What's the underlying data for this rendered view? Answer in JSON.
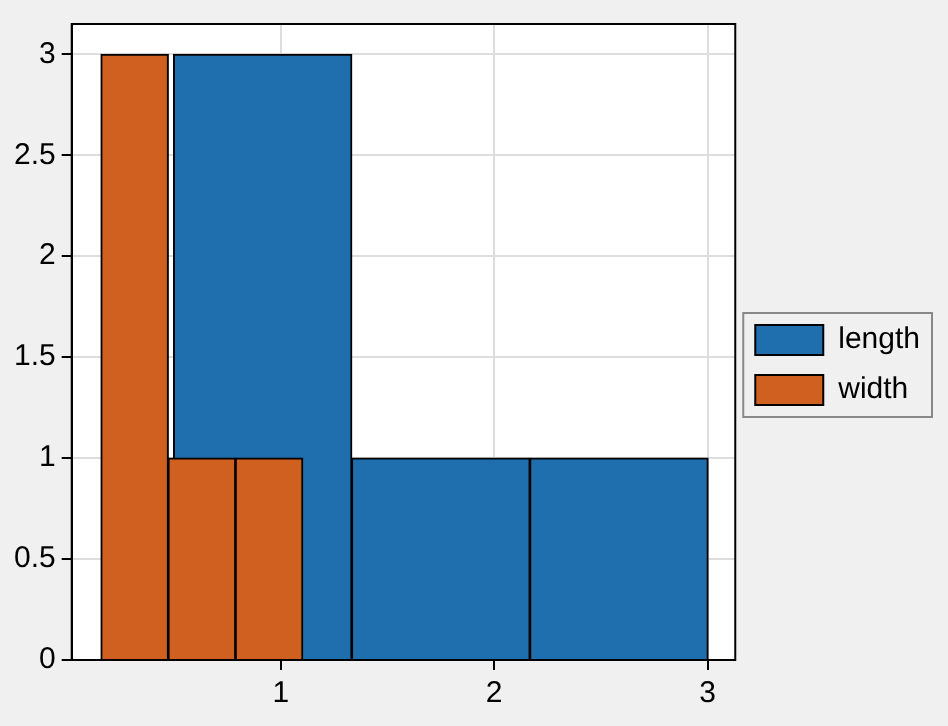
{
  "chart_data": {
    "type": "bar",
    "series": [
      {
        "name": "length",
        "color": "#1f6fae",
        "x": [
          0.915,
          1.75,
          2.585
        ],
        "values": [
          3,
          1,
          1
        ]
      },
      {
        "name": "width",
        "color": "#d0601f",
        "x": [
          0.315,
          0.63,
          0.945
        ],
        "values": [
          3,
          1,
          1
        ]
      }
    ],
    "xlim": [
      0.02,
      3.13
    ],
    "xticks": [
      1,
      2,
      3
    ],
    "ylim": [
      0,
      3.15
    ],
    "yticks": [
      0,
      0.5,
      1,
      1.5,
      2,
      2.5,
      3
    ],
    "grid": true,
    "legend": "right"
  }
}
